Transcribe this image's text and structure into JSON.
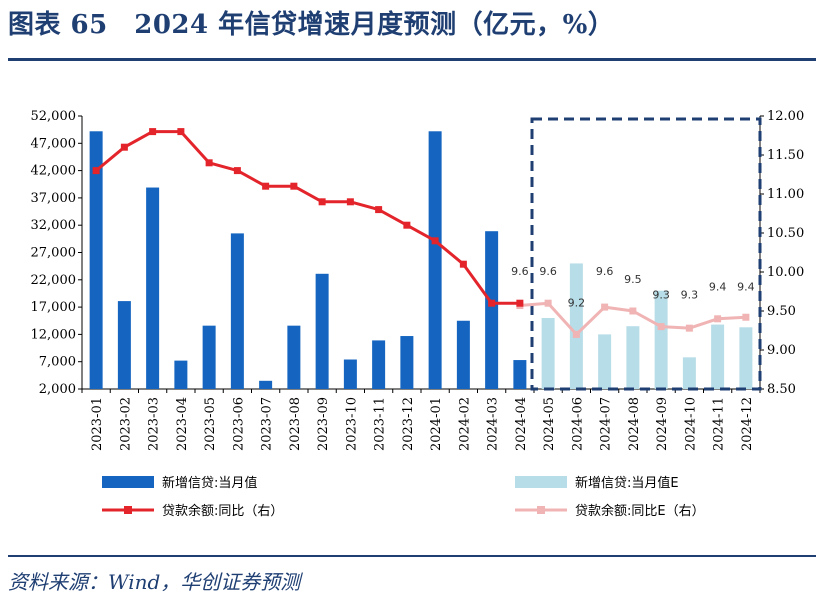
{
  "header": {
    "title": "图表 65　2024 年信贷增速月度预测（亿元，%）"
  },
  "footer": {
    "source": "资料来源：Wind，华创证券预测"
  },
  "colors": {
    "bar_actual": "#1565c0",
    "bar_forecast": "#b7dde8",
    "line_actual": "#e3242b",
    "line_forecast": "#f0b4b4",
    "dashed_box": "#1f3f73",
    "rule": "#1f3f73"
  },
  "chart_data": {
    "type": "bar",
    "categories": [
      "2023-01",
      "2023-02",
      "2023-03",
      "2023-04",
      "2023-05",
      "2023-06",
      "2023-07",
      "2023-08",
      "2023-09",
      "2023-10",
      "2023-11",
      "2023-12",
      "2024-01",
      "2024-02",
      "2024-03",
      "2024-04",
      "2024-05",
      "2024-06",
      "2024-07",
      "2024-08",
      "2024-09",
      "2024-10",
      "2024-11",
      "2024-12"
    ],
    "y_left": {
      "min": 2000,
      "max": 52000,
      "ticks": [
        "2,000",
        "7,000",
        "12,000",
        "17,000",
        "22,000",
        "27,000",
        "32,000",
        "37,000",
        "42,000",
        "47,000",
        "52,000"
      ]
    },
    "y_right": {
      "min": 8.5,
      "max": 12.0,
      "ticks": [
        "8.50",
        "9.00",
        "9.50",
        "10.00",
        "10.50",
        "11.00",
        "11.50",
        "12.00"
      ]
    },
    "series": [
      {
        "name": "新增信贷:当月值",
        "kind": "bar",
        "axis": "left",
        "values": [
          49200,
          18100,
          38900,
          7200,
          13600,
          30500,
          3500,
          13600,
          23100,
          7400,
          10900,
          11700,
          49200,
          14500,
          30900,
          7300,
          null,
          null,
          null,
          null,
          null,
          null,
          null,
          null
        ]
      },
      {
        "name": "新增信贷:当月值E",
        "kind": "bar",
        "axis": "left",
        "values": [
          null,
          null,
          null,
          null,
          null,
          null,
          null,
          null,
          null,
          null,
          null,
          null,
          null,
          null,
          null,
          null,
          15000,
          25000,
          12000,
          13500,
          20000,
          7800,
          13800,
          13300
        ]
      },
      {
        "name": "贷款余额:同比（右）",
        "kind": "line",
        "axis": "right",
        "values": [
          11.3,
          11.6,
          11.8,
          11.8,
          11.4,
          11.3,
          11.1,
          11.1,
          10.9,
          10.9,
          10.8,
          10.6,
          10.4,
          10.1,
          9.6,
          9.6,
          null,
          null,
          null,
          null,
          null,
          null,
          null,
          null
        ]
      },
      {
        "name": "贷款余额:同比E（右）",
        "kind": "line",
        "axis": "right",
        "values": [
          null,
          null,
          null,
          null,
          null,
          null,
          null,
          null,
          null,
          null,
          null,
          null,
          null,
          null,
          null,
          9.57,
          9.6,
          9.2,
          9.55,
          9.5,
          9.3,
          9.28,
          9.4,
          9.42
        ]
      }
    ],
    "data_labels": [
      {
        "index": 15,
        "text": "9.6"
      },
      {
        "index": 16,
        "text": "9.6"
      },
      {
        "index": 17,
        "text": "9.2"
      },
      {
        "index": 18,
        "text": "9.6"
      },
      {
        "index": 19,
        "text": "9.5"
      },
      {
        "index": 20,
        "text": "9.3"
      },
      {
        "index": 21,
        "text": "9.3"
      },
      {
        "index": 22,
        "text": "9.4"
      },
      {
        "index": 23,
        "text": "9.4"
      }
    ],
    "legend": [
      {
        "label": "新增信贷:当月值",
        "type": "bar",
        "color": "#1565c0"
      },
      {
        "label": "新增信贷:当月值E",
        "type": "bar",
        "color": "#b7dde8"
      },
      {
        "label": "贷款余额:同比（右）",
        "type": "line",
        "color": "#e3242b"
      },
      {
        "label": "贷款余额:同比E（右）",
        "type": "line",
        "color": "#f0b4b4"
      }
    ],
    "grid": false
  }
}
